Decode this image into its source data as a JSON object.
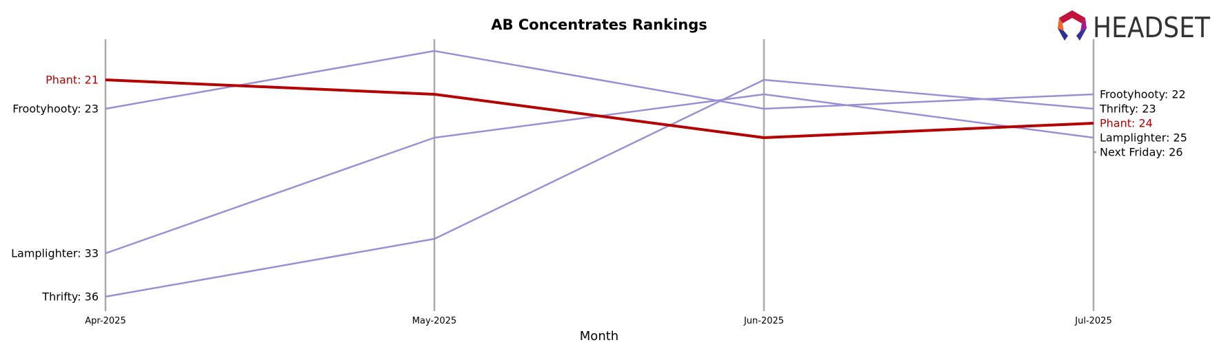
{
  "chart_data": {
    "type": "line",
    "title": "AB Concentrates Rankings",
    "xlabel": "Month",
    "ylabel": "",
    "categories": [
      "Apr-2025",
      "May-2025",
      "Jun-2025",
      "Jul-2025"
    ],
    "y_inverted": true,
    "ylim": [
      39.5,
      18.5
    ],
    "grid": "vertical lines at each month",
    "highlight_color": "#b30000",
    "series_color": "#9b8fd4",
    "axis_line_color": "#aaaaaa",
    "series": [
      {
        "name": "Phant",
        "values": [
          21,
          22,
          25,
          24
        ],
        "highlight": true
      },
      {
        "name": "Frootyhooty",
        "values": [
          23,
          19,
          23,
          22
        ],
        "highlight": false
      },
      {
        "name": "Lamplighter",
        "values": [
          33,
          25,
          22,
          25
        ],
        "highlight": false
      },
      {
        "name": "Thrifty",
        "values": [
          36,
          32,
          21,
          23
        ],
        "highlight": false
      },
      {
        "name": "Next Friday",
        "values": [
          null,
          null,
          null,
          26
        ],
        "highlight": false
      }
    ],
    "start_labels": [
      {
        "text": "Phant: 21",
        "value": 21,
        "highlight": true
      },
      {
        "text": "Frootyhooty: 23",
        "value": 23,
        "highlight": false
      },
      {
        "text": "Lamplighter: 33",
        "value": 33,
        "highlight": false
      },
      {
        "text": "Thrifty: 36",
        "value": 36,
        "highlight": false
      }
    ],
    "end_labels": [
      {
        "text": "Frootyhooty: 22",
        "value": 22,
        "highlight": false
      },
      {
        "text": "Thrifty: 23",
        "value": 23,
        "highlight": false
      },
      {
        "text": "Phant: 24",
        "value": 24,
        "highlight": true
      },
      {
        "text": "Lamplighter: 25",
        "value": 25,
        "highlight": false
      },
      {
        "text": "Next Friday: 26",
        "value": 26,
        "highlight": false
      }
    ]
  },
  "logo": {
    "text": "HEADSET",
    "icon": "headset-logo-icon"
  }
}
